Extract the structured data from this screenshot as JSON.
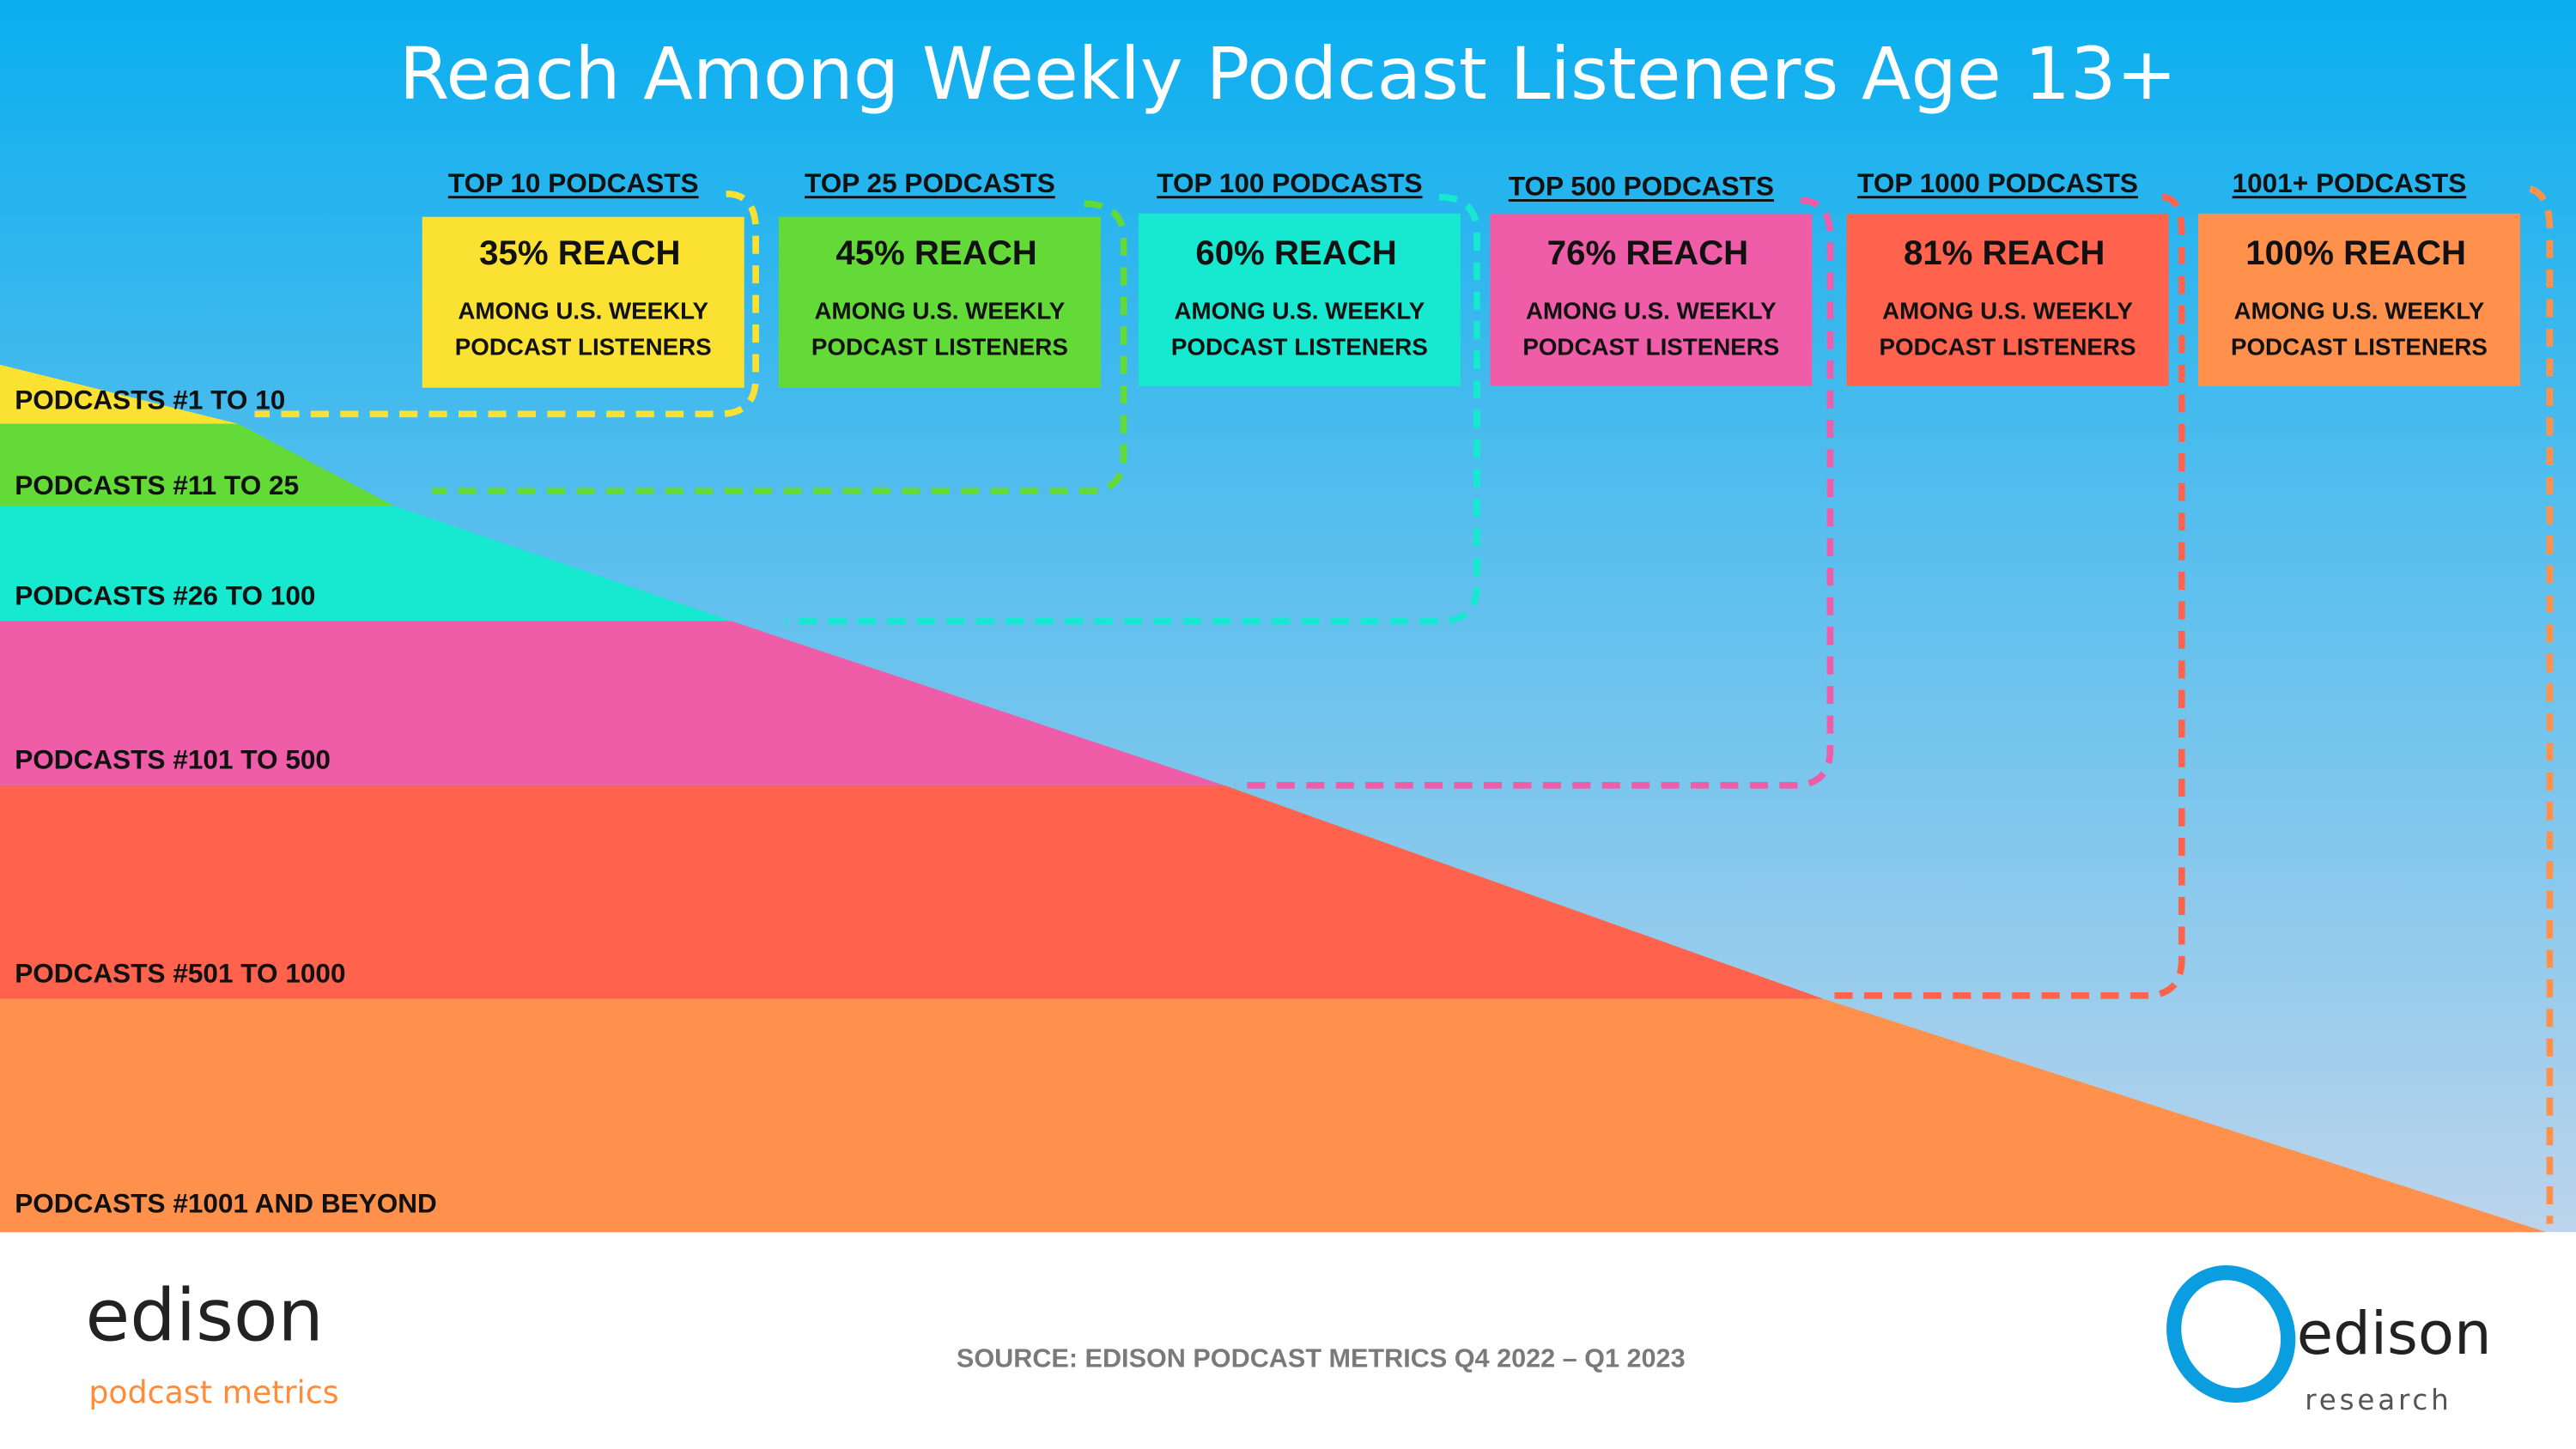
{
  "chart_data": {
    "type": "area",
    "title": "Reach Among Weekly Podcast Listeners Age 13+",
    "tiers": [
      {
        "header": "TOP 10 PODCASTS",
        "reach": "35% REACH",
        "reach_value": 35,
        "sub1": "AMONG U.S. WEEKLY",
        "sub2": "PODCAST LISTENERS",
        "color": "#FBE232",
        "band_label": "PODCASTS #1 TO 10"
      },
      {
        "header": "TOP 25 PODCASTS",
        "reach": "45% REACH",
        "reach_value": 45,
        "sub1": "AMONG U.S. WEEKLY",
        "sub2": "PODCAST LISTENERS",
        "color": "#63DA38",
        "band_label": "PODCASTS #11 TO 25"
      },
      {
        "header": "TOP 100 PODCASTS",
        "reach": "60% REACH",
        "reach_value": 60,
        "sub1": "AMONG U.S. WEEKLY",
        "sub2": "PODCAST LISTENERS",
        "color": "#17E8D0",
        "band_label": "PODCASTS #26 TO 100"
      },
      {
        "header": "TOP 500 PODCASTS",
        "reach": "76% REACH",
        "reach_value": 76,
        "sub1": "AMONG U.S. WEEKLY",
        "sub2": "PODCAST LISTENERS",
        "color": "#EF5DA8",
        "band_label": "PODCASTS #101 TO 500"
      },
      {
        "header": "TOP 1000 PODCASTS",
        "reach": "81% REACH",
        "reach_value": 81,
        "sub1": "AMONG U.S. WEEKLY",
        "sub2": "PODCAST LISTENERS",
        "color": "#FF624D",
        "band_label": "PODCASTS #501 TO 1000"
      },
      {
        "header": "1001+ PODCASTS",
        "reach": "100% REACH",
        "reach_value": 100,
        "sub1": "AMONG U.S. WEEKLY",
        "sub2": "PODCAST LISTENERS",
        "color": "#FF914D",
        "band_label": "PODCASTS #1001 AND BEYOND"
      }
    ],
    "background_colors": {
      "top": "#0AAEEF",
      "bottom": "#BCD4EC"
    }
  },
  "footer": {
    "source": "SOURCE: EDISON PODCAST METRICS Q4 2022 – Q1 2023",
    "logo_left": {
      "name": "edison",
      "tagline": "podcast metrics"
    },
    "logo_right": {
      "name": "edison",
      "tagline": "research",
      "color": "#0A9DE0"
    }
  }
}
